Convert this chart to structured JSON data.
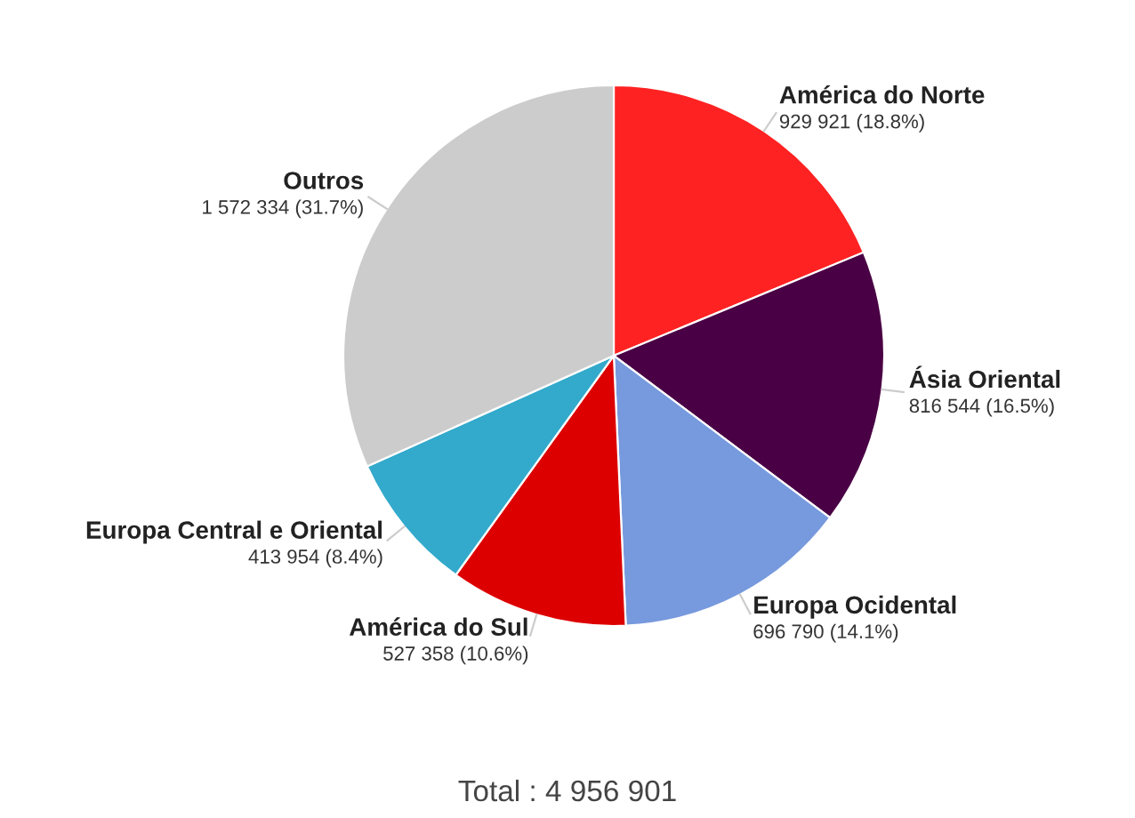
{
  "chart_data": {
    "type": "pie",
    "categories": [
      "América do Norte",
      "Ásia Oriental",
      "Europa Ocidental",
      "América do Sul",
      "Europa Central e Oriental",
      "Outros"
    ],
    "values": [
      929921,
      816544,
      696790,
      527358,
      413954,
      1572334
    ],
    "colors": [
      "#ff2222",
      "#4a0044",
      "#7799dd",
      "#dd0000",
      "#33aacc",
      "#cccccc"
    ],
    "value_labels": [
      "929 921 (18.8%)",
      "816 544 (16.5%)",
      "696 790 (14.1%)",
      "527 358 (10.6%)",
      "413 954 (8.4%)",
      "1 572 334 (31.7%)"
    ],
    "annotations": [
      "Total : 4 956 901"
    ]
  }
}
